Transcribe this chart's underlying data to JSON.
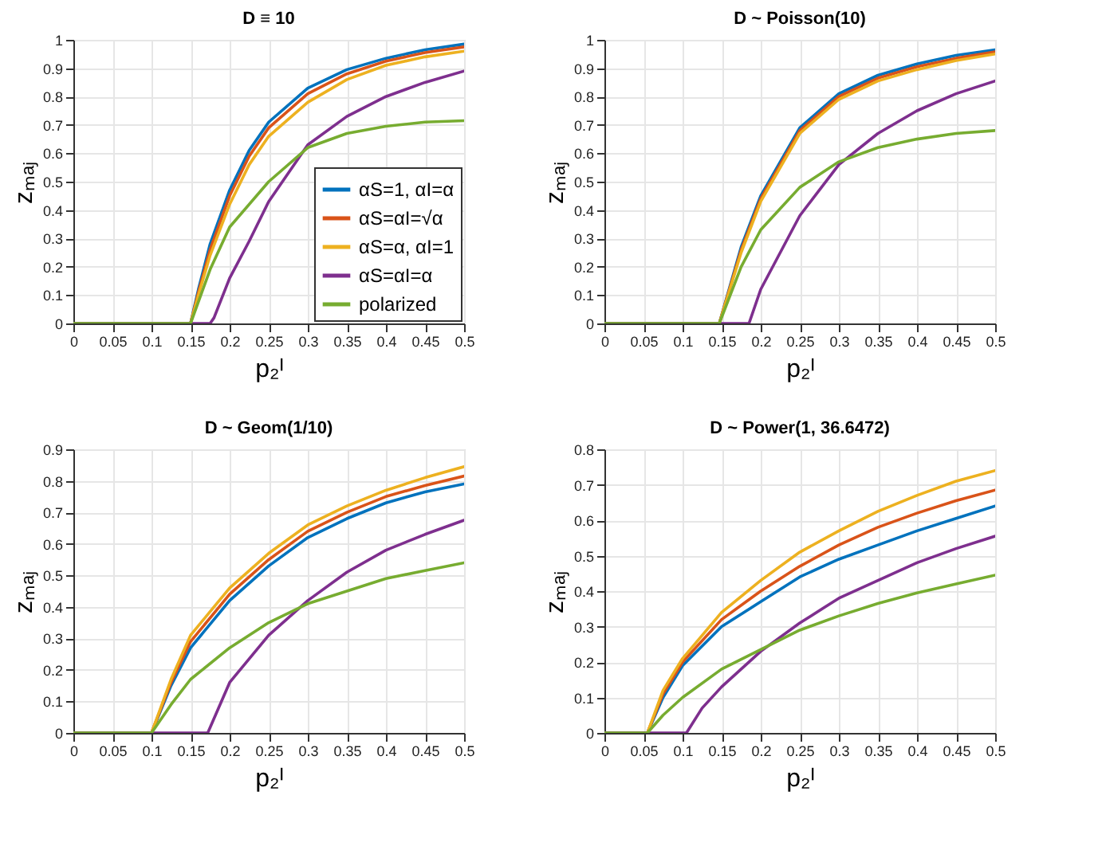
{
  "chart_data": [
    {
      "type": "line",
      "title": "D ≡ 10",
      "xlabel": "p₂ᴵ",
      "ylabel": "zₘₐⱼ",
      "xlim": [
        0,
        0.5
      ],
      "ylim": [
        0,
        1
      ],
      "xticks": [
        0,
        0.05,
        0.1,
        0.15,
        0.2,
        0.25,
        0.3,
        0.35,
        0.4,
        0.45,
        0.5
      ],
      "yticks": [
        0,
        0.1,
        0.2,
        0.3,
        0.4,
        0.5,
        0.6,
        0.7,
        0.8,
        0.9,
        1
      ],
      "grid": true,
      "legend": "bottom right",
      "line_style": "solid",
      "series": [
        {
          "name": "αS=1, αI=α",
          "color": "#0072bd",
          "x": [
            0,
            0.15,
            0.16,
            0.175,
            0.2,
            0.225,
            0.25,
            0.3,
            0.35,
            0.4,
            0.45,
            0.5
          ],
          "values": [
            0,
            0,
            0.12,
            0.28,
            0.47,
            0.61,
            0.71,
            0.83,
            0.895,
            0.935,
            0.965,
            0.985
          ]
        },
        {
          "name": "αS=αI=√α",
          "color": "#d95319",
          "x": [
            0,
            0.15,
            0.16,
            0.175,
            0.2,
            0.225,
            0.25,
            0.3,
            0.35,
            0.4,
            0.45,
            0.5
          ],
          "values": [
            0,
            0,
            0.11,
            0.26,
            0.45,
            0.59,
            0.69,
            0.81,
            0.88,
            0.925,
            0.955,
            0.975
          ]
        },
        {
          "name": "αS=α, αI=1",
          "color": "#edb120",
          "x": [
            0,
            0.15,
            0.16,
            0.175,
            0.2,
            0.225,
            0.25,
            0.3,
            0.35,
            0.4,
            0.45,
            0.5
          ],
          "values": [
            0,
            0,
            0.1,
            0.24,
            0.42,
            0.56,
            0.66,
            0.78,
            0.86,
            0.91,
            0.94,
            0.96
          ]
        },
        {
          "name": "αS=αI=α",
          "color": "#7e2f8e",
          "x": [
            0,
            0.175,
            0.18,
            0.2,
            0.225,
            0.25,
            0.3,
            0.35,
            0.4,
            0.45,
            0.5
          ],
          "values": [
            0,
            0,
            0.02,
            0.16,
            0.29,
            0.43,
            0.63,
            0.73,
            0.8,
            0.85,
            0.89
          ]
        },
        {
          "name": "polarized",
          "color": "#77ac30",
          "x": [
            0,
            0.15,
            0.175,
            0.2,
            0.25,
            0.3,
            0.35,
            0.4,
            0.45,
            0.5
          ],
          "values": [
            0,
            0,
            0.19,
            0.34,
            0.5,
            0.62,
            0.67,
            0.695,
            0.71,
            0.715
          ]
        }
      ]
    },
    {
      "type": "line",
      "title": "D ~ Poisson(10)",
      "xlabel": "p₂ᴵ",
      "ylabel": "zₘₐⱼ",
      "xlim": [
        0,
        0.5
      ],
      "ylim": [
        0,
        1
      ],
      "xticks": [
        0,
        0.05,
        0.1,
        0.15,
        0.2,
        0.25,
        0.3,
        0.35,
        0.4,
        0.45,
        0.5
      ],
      "yticks": [
        0,
        0.1,
        0.2,
        0.3,
        0.4,
        0.5,
        0.6,
        0.7,
        0.8,
        0.9,
        1
      ],
      "grid": true,
      "line_style": "solid",
      "series": [
        {
          "color": "#0072bd",
          "x": [
            0,
            0.147,
            0.175,
            0.2,
            0.25,
            0.3,
            0.35,
            0.4,
            0.45,
            0.5
          ],
          "values": [
            0,
            0,
            0.27,
            0.45,
            0.69,
            0.81,
            0.875,
            0.915,
            0.945,
            0.965
          ]
        },
        {
          "color": "#d95319",
          "x": [
            0,
            0.147,
            0.175,
            0.2,
            0.25,
            0.3,
            0.35,
            0.4,
            0.45,
            0.5
          ],
          "values": [
            0,
            0,
            0.26,
            0.44,
            0.68,
            0.8,
            0.865,
            0.905,
            0.935,
            0.958
          ]
        },
        {
          "color": "#edb120",
          "x": [
            0,
            0.147,
            0.175,
            0.2,
            0.25,
            0.3,
            0.35,
            0.4,
            0.45,
            0.5
          ],
          "values": [
            0,
            0,
            0.25,
            0.43,
            0.67,
            0.79,
            0.855,
            0.895,
            0.927,
            0.95
          ]
        },
        {
          "color": "#7e2f8e",
          "x": [
            0,
            0.185,
            0.2,
            0.25,
            0.3,
            0.35,
            0.4,
            0.45,
            0.5
          ],
          "values": [
            0,
            0,
            0.12,
            0.38,
            0.56,
            0.67,
            0.75,
            0.81,
            0.855
          ]
        },
        {
          "color": "#77ac30",
          "x": [
            0,
            0.147,
            0.175,
            0.2,
            0.25,
            0.3,
            0.35,
            0.4,
            0.45,
            0.5
          ],
          "values": [
            0,
            0,
            0.2,
            0.33,
            0.48,
            0.57,
            0.62,
            0.65,
            0.67,
            0.68
          ]
        }
      ]
    },
    {
      "type": "line",
      "title": "D ~ Geom(1/10)",
      "xlabel": "p₂ᴵ",
      "ylabel": "zₘₐⱼ",
      "xlim": [
        0,
        0.5
      ],
      "ylim": [
        0,
        0.9
      ],
      "xticks": [
        0,
        0.05,
        0.1,
        0.15,
        0.2,
        0.25,
        0.3,
        0.35,
        0.4,
        0.45,
        0.5
      ],
      "yticks": [
        0,
        0.1,
        0.2,
        0.3,
        0.4,
        0.5,
        0.6,
        0.7,
        0.8,
        0.9
      ],
      "grid": true,
      "line_style": "solid",
      "series": [
        {
          "color": "#0072bd",
          "x": [
            0,
            0.1,
            0.125,
            0.15,
            0.2,
            0.25,
            0.3,
            0.35,
            0.4,
            0.45,
            0.5
          ],
          "values": [
            0,
            0,
            0.15,
            0.27,
            0.42,
            0.53,
            0.62,
            0.68,
            0.73,
            0.765,
            0.79
          ]
        },
        {
          "color": "#d95319",
          "x": [
            0,
            0.1,
            0.125,
            0.15,
            0.2,
            0.25,
            0.3,
            0.35,
            0.4,
            0.45,
            0.5
          ],
          "values": [
            0,
            0,
            0.16,
            0.29,
            0.44,
            0.55,
            0.64,
            0.7,
            0.75,
            0.785,
            0.815
          ]
        },
        {
          "color": "#edb120",
          "x": [
            0,
            0.1,
            0.125,
            0.15,
            0.2,
            0.25,
            0.3,
            0.35,
            0.4,
            0.45,
            0.5
          ],
          "values": [
            0,
            0,
            0.17,
            0.31,
            0.46,
            0.57,
            0.66,
            0.72,
            0.77,
            0.81,
            0.845
          ]
        },
        {
          "color": "#7e2f8e",
          "x": [
            0,
            0.172,
            0.2,
            0.25,
            0.3,
            0.35,
            0.4,
            0.45,
            0.5
          ],
          "values": [
            0,
            0,
            0.16,
            0.31,
            0.42,
            0.51,
            0.58,
            0.63,
            0.675
          ]
        },
        {
          "color": "#77ac30",
          "x": [
            0,
            0.1,
            0.125,
            0.15,
            0.2,
            0.25,
            0.3,
            0.35,
            0.4,
            0.45,
            0.5
          ],
          "values": [
            0,
            0,
            0.09,
            0.17,
            0.27,
            0.35,
            0.41,
            0.45,
            0.49,
            0.515,
            0.54
          ]
        }
      ]
    },
    {
      "type": "line",
      "title": "D ~ Power(1, 36.6472)",
      "xlabel": "p₂ᴵ",
      "ylabel": "zₘₐⱼ",
      "xlim": [
        0,
        0.5
      ],
      "ylim": [
        0,
        0.8
      ],
      "xticks": [
        0,
        0.05,
        0.1,
        0.15,
        0.2,
        0.25,
        0.3,
        0.35,
        0.4,
        0.45,
        0.5
      ],
      "yticks": [
        0,
        0.1,
        0.2,
        0.3,
        0.4,
        0.5,
        0.6,
        0.7,
        0.8
      ],
      "grid": true,
      "line_style": "solid",
      "series": [
        {
          "color": "#0072bd",
          "x": [
            0,
            0.055,
            0.075,
            0.1,
            0.15,
            0.2,
            0.25,
            0.3,
            0.35,
            0.4,
            0.45,
            0.5
          ],
          "values": [
            0,
            0,
            0.1,
            0.19,
            0.3,
            0.37,
            0.44,
            0.49,
            0.53,
            0.57,
            0.605,
            0.64
          ]
        },
        {
          "color": "#d95319",
          "x": [
            0,
            0.055,
            0.075,
            0.1,
            0.15,
            0.2,
            0.25,
            0.3,
            0.35,
            0.4,
            0.45,
            0.5
          ],
          "values": [
            0,
            0,
            0.11,
            0.2,
            0.32,
            0.4,
            0.47,
            0.53,
            0.58,
            0.62,
            0.655,
            0.685
          ]
        },
        {
          "color": "#edb120",
          "x": [
            0,
            0.055,
            0.075,
            0.1,
            0.15,
            0.2,
            0.25,
            0.3,
            0.35,
            0.4,
            0.45,
            0.5
          ],
          "values": [
            0,
            0,
            0.12,
            0.21,
            0.34,
            0.43,
            0.51,
            0.57,
            0.625,
            0.67,
            0.71,
            0.74
          ]
        },
        {
          "color": "#7e2f8e",
          "x": [
            0,
            0.105,
            0.125,
            0.15,
            0.2,
            0.25,
            0.3,
            0.35,
            0.4,
            0.45,
            0.5
          ],
          "values": [
            0,
            0,
            0.07,
            0.13,
            0.23,
            0.31,
            0.38,
            0.43,
            0.48,
            0.52,
            0.555
          ]
        },
        {
          "color": "#77ac30",
          "x": [
            0,
            0.055,
            0.075,
            0.1,
            0.15,
            0.2,
            0.25,
            0.3,
            0.35,
            0.4,
            0.45,
            0.5
          ],
          "values": [
            0,
            0,
            0.05,
            0.1,
            0.18,
            0.235,
            0.29,
            0.33,
            0.365,
            0.395,
            0.42,
            0.445
          ]
        }
      ]
    }
  ]
}
